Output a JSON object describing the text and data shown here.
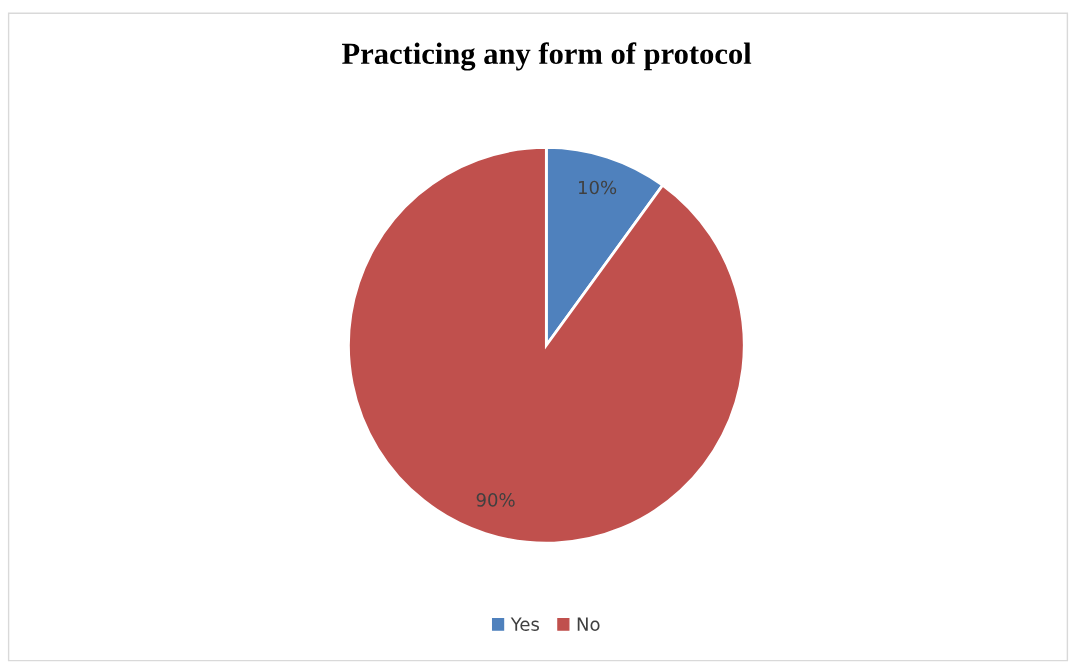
{
  "chart_data": {
    "type": "pie",
    "title": "Practicing any form of protocol",
    "categories": [
      "Yes",
      "No"
    ],
    "values": [
      10,
      90
    ],
    "colors": [
      "#4f81bd",
      "#c0504d"
    ],
    "value_labels": [
      "10%",
      "90%"
    ],
    "legend": "bottom"
  }
}
